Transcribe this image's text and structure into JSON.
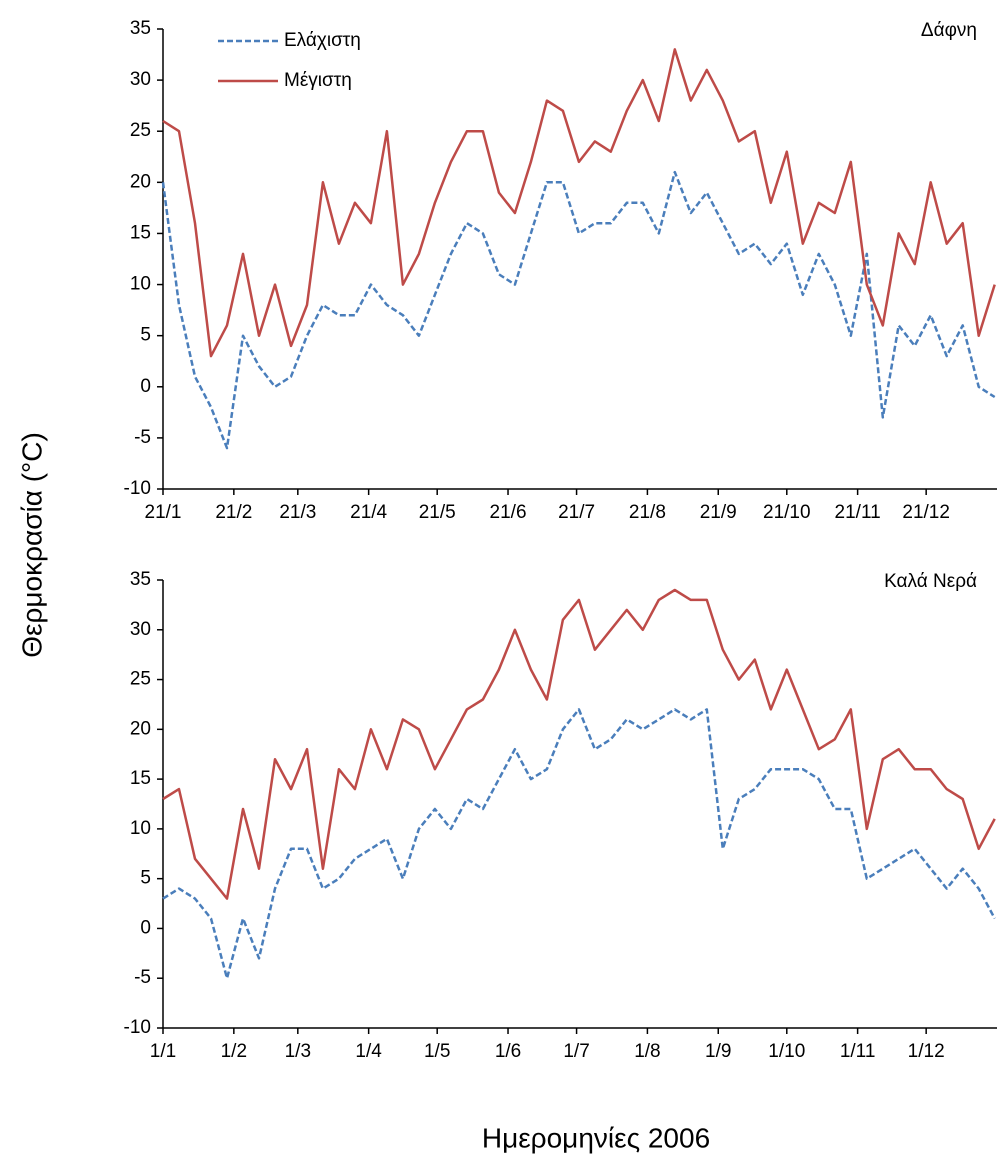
{
  "chart_data": [
    {
      "type": "line",
      "title": "Δάφνη",
      "y_label": "Θερμοκρασία (°C)",
      "legend": "top-left",
      "x": [
        0,
        7,
        14,
        21,
        28,
        35,
        42,
        49,
        56,
        63,
        70,
        77,
        84,
        91,
        98,
        105,
        112,
        119,
        126,
        133,
        140,
        147,
        154,
        161,
        168,
        175,
        182,
        189,
        196,
        203,
        210,
        217,
        224,
        231,
        238,
        245,
        252,
        259,
        266,
        273,
        280,
        287,
        294,
        301,
        308,
        315,
        322,
        329,
        336,
        343,
        350,
        357,
        364
      ],
      "xlim": [
        0,
        365
      ],
      "xticks": [
        {
          "value": 0,
          "label": "21/1"
        },
        {
          "value": 31,
          "label": "21/2"
        },
        {
          "value": 59,
          "label": "21/3"
        },
        {
          "value": 90,
          "label": "21/4"
        },
        {
          "value": 120,
          "label": "21/5"
        },
        {
          "value": 151,
          "label": "21/6"
        },
        {
          "value": 181,
          "label": "21/7"
        },
        {
          "value": 212,
          "label": "21/8"
        },
        {
          "value": 243,
          "label": "21/9"
        },
        {
          "value": 273,
          "label": "21/10"
        },
        {
          "value": 304,
          "label": "21/11"
        },
        {
          "value": 334,
          "label": "21/12"
        }
      ],
      "ylim": [
        -10,
        35
      ],
      "yticks": [
        -10,
        -5,
        0,
        5,
        10,
        15,
        20,
        25,
        30,
        35
      ],
      "series": [
        {
          "name": "Ελάχιστη",
          "color": "#4a7ebb",
          "dash": true,
          "values": [
            20,
            8,
            1,
            -2,
            -6,
            5,
            2,
            0,
            1,
            5,
            8,
            7,
            7,
            10,
            8,
            7,
            5,
            9,
            13,
            16,
            15,
            11,
            10,
            15,
            20,
            20,
            15,
            16,
            16,
            18,
            18,
            15,
            21,
            17,
            19,
            16,
            13,
            14,
            12,
            14,
            9,
            13,
            10,
            5,
            13,
            -3,
            6,
            4,
            7,
            3,
            6,
            0,
            -1
          ]
        },
        {
          "name": "Μέγιστη",
          "color": "#be4b48",
          "dash": false,
          "values": [
            26,
            25,
            16,
            3,
            6,
            13,
            5,
            10,
            4,
            8,
            20,
            14,
            18,
            16,
            25,
            10,
            13,
            18,
            22,
            25,
            25,
            19,
            17,
            22,
            28,
            27,
            22,
            24,
            23,
            27,
            30,
            26,
            33,
            28,
            31,
            28,
            24,
            25,
            18,
            23,
            14,
            18,
            17,
            22,
            10,
            6,
            15,
            12,
            20,
            14,
            16,
            5,
            10
          ]
        }
      ]
    },
    {
      "type": "line",
      "title": "Καλά Νερά",
      "x_label": "Ημερομηνίες 2006",
      "x": [
        0,
        7,
        14,
        21,
        28,
        35,
        42,
        49,
        56,
        63,
        70,
        77,
        84,
        91,
        98,
        105,
        112,
        119,
        126,
        133,
        140,
        147,
        154,
        161,
        168,
        175,
        182,
        189,
        196,
        203,
        210,
        217,
        224,
        231,
        238,
        245,
        252,
        259,
        266,
        273,
        280,
        287,
        294,
        301,
        308,
        315,
        322,
        329,
        336,
        343,
        350,
        357,
        364
      ],
      "xlim": [
        0,
        365
      ],
      "xticks": [
        {
          "value": 0,
          "label": "1/1"
        },
        {
          "value": 31,
          "label": "1/2"
        },
        {
          "value": 59,
          "label": "1/3"
        },
        {
          "value": 90,
          "label": "1/4"
        },
        {
          "value": 120,
          "label": "1/5"
        },
        {
          "value": 151,
          "label": "1/6"
        },
        {
          "value": 181,
          "label": "1/7"
        },
        {
          "value": 212,
          "label": "1/8"
        },
        {
          "value": 243,
          "label": "1/9"
        },
        {
          "value": 273,
          "label": "1/10"
        },
        {
          "value": 304,
          "label": "1/11"
        },
        {
          "value": 334,
          "label": "1/12"
        }
      ],
      "ylim": [
        -10,
        35
      ],
      "yticks": [
        -10,
        -5,
        0,
        5,
        10,
        15,
        20,
        25,
        30,
        35
      ],
      "series": [
        {
          "color": "#4a7ebb",
          "dash": true,
          "values": [
            3,
            4,
            3,
            1,
            -5,
            1,
            -3,
            4,
            8,
            8,
            4,
            5,
            7,
            8,
            9,
            5,
            10,
            12,
            10,
            13,
            12,
            15,
            18,
            15,
            16,
            20,
            22,
            18,
            19,
            21,
            20,
            21,
            22,
            21,
            22,
            8,
            13,
            14,
            16,
            16,
            16,
            15,
            12,
            12,
            5,
            6,
            7,
            8,
            6,
            4,
            6,
            4,
            1
          ]
        },
        {
          "color": "#be4b48",
          "dash": false,
          "values": [
            13,
            14,
            7,
            5,
            3,
            12,
            6,
            17,
            14,
            18,
            6,
            16,
            14,
            20,
            16,
            21,
            20,
            16,
            19,
            22,
            23,
            26,
            30,
            26,
            23,
            31,
            33,
            28,
            30,
            32,
            30,
            33,
            34,
            33,
            33,
            28,
            25,
            27,
            22,
            26,
            22,
            18,
            19,
            22,
            10,
            17,
            18,
            16,
            16,
            14,
            13,
            8,
            11
          ]
        }
      ]
    }
  ]
}
